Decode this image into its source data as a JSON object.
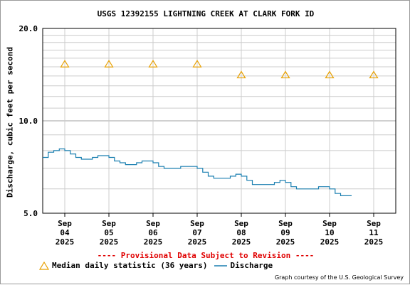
{
  "chart_data": {
    "type": "line",
    "title": "USGS 12392155 LIGHTNING CREEK AT CLARK FORK ID",
    "ylabel": "Discharge, cubic feet per second",
    "y_scale": "log",
    "ylim": [
      5.0,
      20.0
    ],
    "y_ticks": [
      "20.0",
      "10.0",
      "5.0"
    ],
    "x_ticks": [
      {
        "month": "Sep",
        "day": "04",
        "year": "2025"
      },
      {
        "month": "Sep",
        "day": "05",
        "year": "2025"
      },
      {
        "month": "Sep",
        "day": "06",
        "year": "2025"
      },
      {
        "month": "Sep",
        "day": "07",
        "year": "2025"
      },
      {
        "month": "Sep",
        "day": "08",
        "year": "2025"
      },
      {
        "month": "Sep",
        "day": "09",
        "year": "2025"
      },
      {
        "month": "Sep",
        "day": "10",
        "year": "2025"
      },
      {
        "month": "Sep",
        "day": "11",
        "year": "2025"
      }
    ],
    "grid": true,
    "series": [
      {
        "name": "Median daily statistic (36 years)",
        "marker": "triangle",
        "color": "#e8a000",
        "points": [
          {
            "x": "2025-09-04",
            "y": 15.3
          },
          {
            "x": "2025-09-05",
            "y": 15.3
          },
          {
            "x": "2025-09-06",
            "y": 15.3
          },
          {
            "x": "2025-09-07",
            "y": 15.3
          },
          {
            "x": "2025-09-08",
            "y": 14.1
          },
          {
            "x": "2025-09-09",
            "y": 14.1
          },
          {
            "x": "2025-09-10",
            "y": 14.1
          },
          {
            "x": "2025-09-11",
            "y": 14.1
          }
        ]
      },
      {
        "name": "Discharge",
        "color": "#1a7fb0",
        "points": [
          {
            "x": "2025-09-03 12:00",
            "y": 7.6
          },
          {
            "x": "2025-09-03 15:00",
            "y": 7.9
          },
          {
            "x": "2025-09-03 18:00",
            "y": 8.0
          },
          {
            "x": "2025-09-03 21:00",
            "y": 8.1
          },
          {
            "x": "2025-09-04 00:00",
            "y": 8.0
          },
          {
            "x": "2025-09-04 03:00",
            "y": 7.8
          },
          {
            "x": "2025-09-04 06:00",
            "y": 7.6
          },
          {
            "x": "2025-09-04 09:00",
            "y": 7.5
          },
          {
            "x": "2025-09-04 12:00",
            "y": 7.5
          },
          {
            "x": "2025-09-04 15:00",
            "y": 7.6
          },
          {
            "x": "2025-09-04 18:00",
            "y": 7.7
          },
          {
            "x": "2025-09-04 21:00",
            "y": 7.7
          },
          {
            "x": "2025-09-05 00:00",
            "y": 7.6
          },
          {
            "x": "2025-09-05 03:00",
            "y": 7.4
          },
          {
            "x": "2025-09-05 06:00",
            "y": 7.3
          },
          {
            "x": "2025-09-05 09:00",
            "y": 7.2
          },
          {
            "x": "2025-09-05 12:00",
            "y": 7.2
          },
          {
            "x": "2025-09-05 15:00",
            "y": 7.3
          },
          {
            "x": "2025-09-05 18:00",
            "y": 7.4
          },
          {
            "x": "2025-09-05 21:00",
            "y": 7.4
          },
          {
            "x": "2025-09-06 00:00",
            "y": 7.3
          },
          {
            "x": "2025-09-06 03:00",
            "y": 7.1
          },
          {
            "x": "2025-09-06 06:00",
            "y": 7.0
          },
          {
            "x": "2025-09-06 09:00",
            "y": 7.0
          },
          {
            "x": "2025-09-06 12:00",
            "y": 7.0
          },
          {
            "x": "2025-09-06 15:00",
            "y": 7.1
          },
          {
            "x": "2025-09-06 18:00",
            "y": 7.1
          },
          {
            "x": "2025-09-06 21:00",
            "y": 7.1
          },
          {
            "x": "2025-09-07 00:00",
            "y": 7.0
          },
          {
            "x": "2025-09-07 03:00",
            "y": 6.8
          },
          {
            "x": "2025-09-07 06:00",
            "y": 6.6
          },
          {
            "x": "2025-09-07 09:00",
            "y": 6.5
          },
          {
            "x": "2025-09-07 12:00",
            "y": 6.5
          },
          {
            "x": "2025-09-07 15:00",
            "y": 6.5
          },
          {
            "x": "2025-09-07 18:00",
            "y": 6.6
          },
          {
            "x": "2025-09-07 21:00",
            "y": 6.7
          },
          {
            "x": "2025-09-08 00:00",
            "y": 6.6
          },
          {
            "x": "2025-09-08 03:00",
            "y": 6.4
          },
          {
            "x": "2025-09-08 06:00",
            "y": 6.2
          },
          {
            "x": "2025-09-08 09:00",
            "y": 6.2
          },
          {
            "x": "2025-09-08 12:00",
            "y": 6.2
          },
          {
            "x": "2025-09-08 15:00",
            "y": 6.2
          },
          {
            "x": "2025-09-08 18:00",
            "y": 6.3
          },
          {
            "x": "2025-09-08 21:00",
            "y": 6.4
          },
          {
            "x": "2025-09-09 00:00",
            "y": 6.3
          },
          {
            "x": "2025-09-09 03:00",
            "y": 6.1
          },
          {
            "x": "2025-09-09 06:00",
            "y": 6.0
          },
          {
            "x": "2025-09-09 09:00",
            "y": 6.0
          },
          {
            "x": "2025-09-09 12:00",
            "y": 6.0
          },
          {
            "x": "2025-09-09 15:00",
            "y": 6.0
          },
          {
            "x": "2025-09-09 18:00",
            "y": 6.1
          },
          {
            "x": "2025-09-09 21:00",
            "y": 6.1
          },
          {
            "x": "2025-09-10 00:00",
            "y": 6.0
          },
          {
            "x": "2025-09-10 03:00",
            "y": 5.8
          },
          {
            "x": "2025-09-10 06:00",
            "y": 5.7
          },
          {
            "x": "2025-09-10 09:00",
            "y": 5.7
          },
          {
            "x": "2025-09-10 12:00",
            "y": 5.7
          }
        ]
      }
    ]
  },
  "notice": "---- Provisional Data Subject to Revision ----",
  "legend": {
    "median_label": "Median daily statistic (36 years)",
    "discharge_label": "Discharge"
  },
  "credit": "Graph courtesy of the U.S. Geological Survey"
}
